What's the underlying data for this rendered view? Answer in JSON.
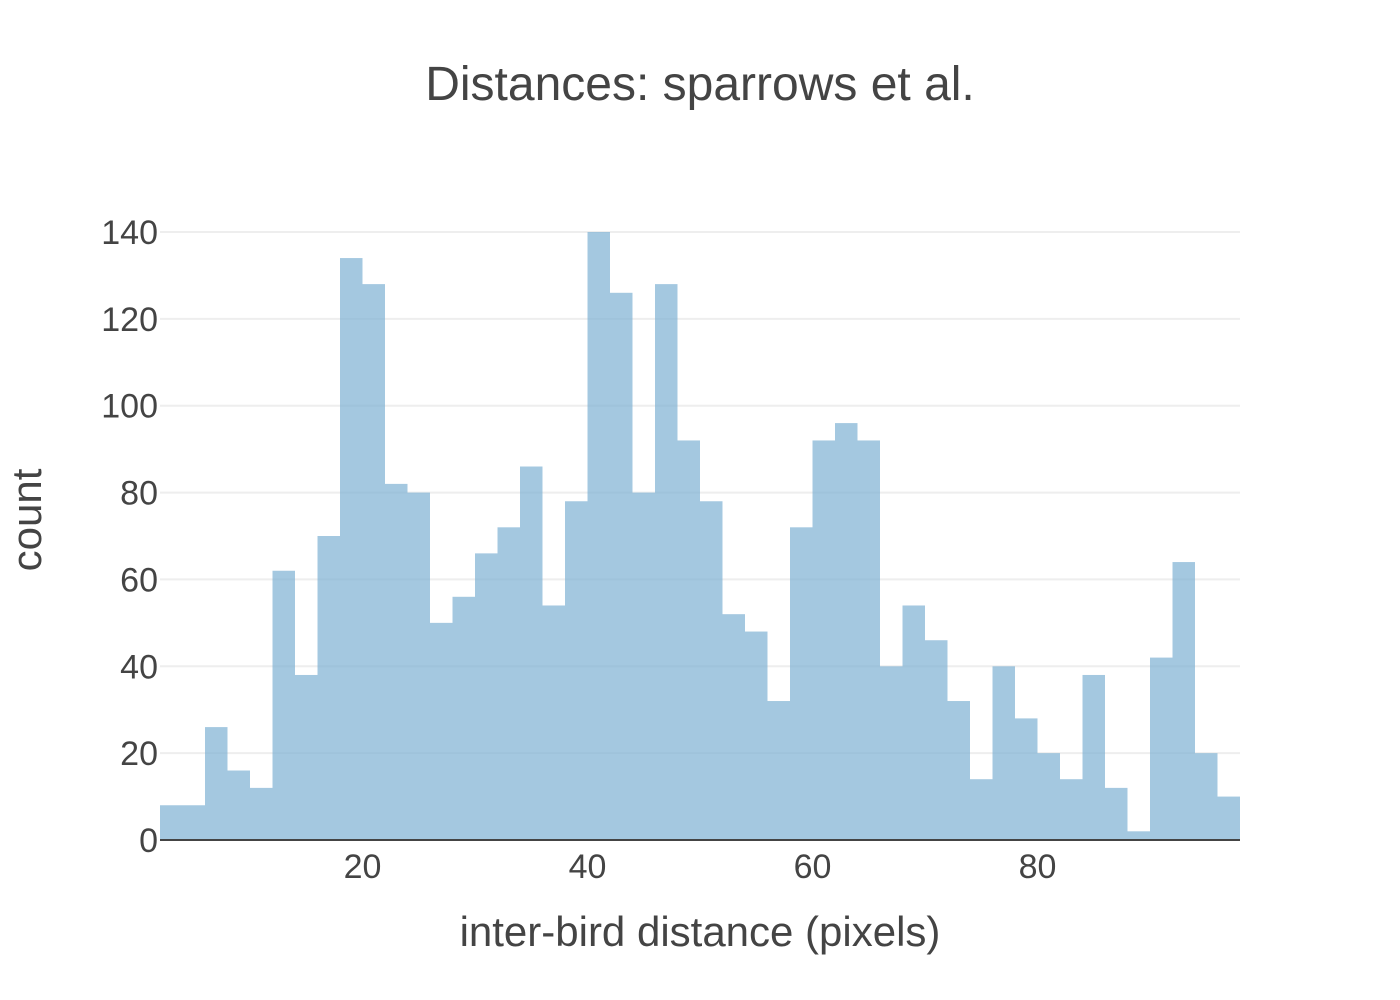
{
  "chart_data": {
    "type": "bar",
    "title": "Distances: sparrows et al.",
    "xlabel": "inter-bird distance (pixels)",
    "ylabel": "count",
    "bin_width": 2,
    "bin_starts": [
      2,
      4,
      6,
      8,
      10,
      12,
      14,
      16,
      18,
      20,
      22,
      24,
      26,
      28,
      30,
      32,
      34,
      36,
      38,
      40,
      42,
      44,
      46,
      48,
      50,
      52,
      54,
      56,
      58,
      60,
      62,
      64,
      66,
      68,
      70,
      72,
      74,
      76,
      78,
      80,
      82,
      84,
      86,
      88,
      90,
      92,
      94,
      96
    ],
    "values": [
      8,
      8,
      26,
      16,
      12,
      62,
      38,
      70,
      134,
      128,
      82,
      80,
      50,
      56,
      66,
      72,
      86,
      54,
      78,
      140,
      126,
      80,
      128,
      92,
      78,
      52,
      48,
      32,
      72,
      92,
      96,
      92,
      40,
      54,
      46,
      32,
      14,
      40,
      28,
      20,
      14,
      38,
      12,
      2,
      42,
      64,
      20,
      10
    ],
    "xlim": [
      2,
      98
    ],
    "ylim": [
      0,
      140
    ],
    "x_ticks": [
      20,
      40,
      60,
      80
    ],
    "y_ticks": [
      0,
      20,
      40,
      60,
      80,
      100,
      120,
      140
    ],
    "bar_color": "#7eb0d3",
    "grid": true
  }
}
